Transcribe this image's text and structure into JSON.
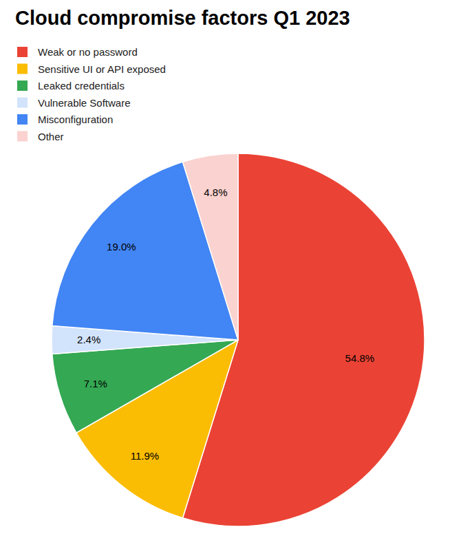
{
  "chart_data": {
    "type": "pie",
    "title": "Cloud compromise factors Q1 2023",
    "categories": [
      "Weak or no password",
      "Sensitive UI or API exposed",
      "Leaked credentials",
      "Vulnerable Software",
      "Misconfiguration",
      "Other"
    ],
    "values": [
      54.8,
      11.9,
      7.1,
      2.4,
      19.0,
      4.8
    ],
    "value_labels": [
      "54.8%",
      "11.9%",
      "7.1%",
      "2.4%",
      "19.0%",
      "4.8%"
    ],
    "colors": [
      "#EA4335",
      "#FBBC04",
      "#34A853",
      "#D2E3FC",
      "#4285F4",
      "#FAD2CF"
    ],
    "legend": "top-left",
    "data_labels": true
  }
}
